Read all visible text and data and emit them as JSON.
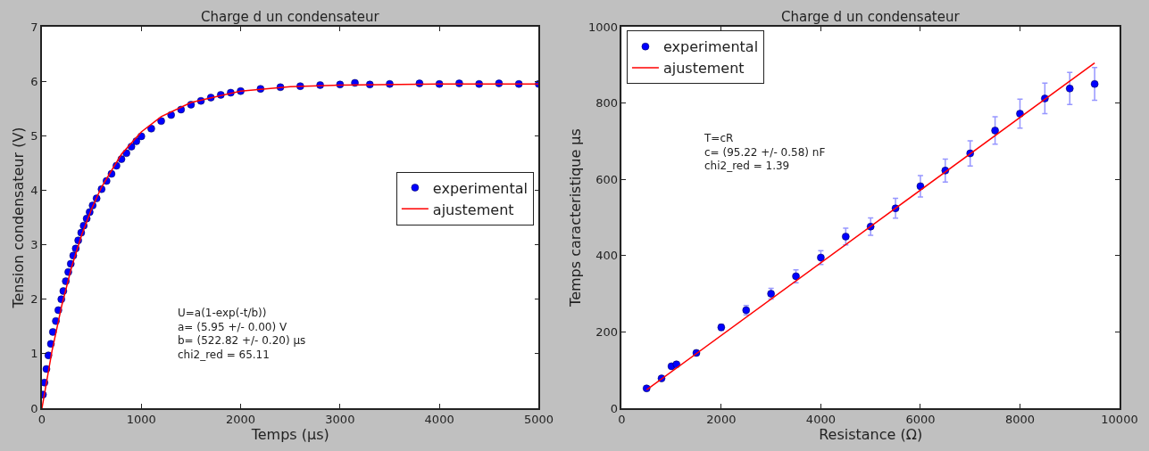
{
  "chart_data": [
    {
      "type": "scatter",
      "title": "Charge d un condensateur",
      "xlabel": "Temps (µs)",
      "ylabel": "Tension condensateur (V)",
      "xlim": [
        0,
        5000
      ],
      "xticks": [
        0,
        1000,
        2000,
        3000,
        4000,
        5000
      ],
      "ylim": [
        0,
        7
      ],
      "yticks": [
        0,
        1,
        2,
        3,
        4,
        5,
        6,
        7
      ],
      "legend": "right",
      "annotations": [
        "U=a(1-exp(-t/b))\na= (5.95 +/- 0.00) V\nb= (522.82 +/- 0.20) µs\nchi2_red = 65.11"
      ],
      "series": [
        {
          "name": "experimental",
          "marker": "circle",
          "color": "#0000ff",
          "x": [
            10,
            25,
            45,
            65,
            90,
            110,
            140,
            165,
            195,
            215,
            240,
            265,
            290,
            315,
            340,
            365,
            395,
            420,
            450,
            480,
            510,
            550,
            600,
            650,
            700,
            750,
            800,
            850,
            900,
            950,
            1000,
            1100,
            1200,
            1300,
            1400,
            1500,
            1600,
            1700,
            1800,
            1900,
            2000,
            2200,
            2400,
            2600,
            2800,
            3000,
            3150,
            3300,
            3500,
            3800,
            4000,
            4200,
            4400,
            4600,
            4800,
            5000
          ],
          "values": [
            0.25,
            0.47,
            0.72,
            0.97,
            1.18,
            1.4,
            1.6,
            1.8,
            2.0,
            2.15,
            2.33,
            2.5,
            2.65,
            2.8,
            2.93,
            3.08,
            3.22,
            3.35,
            3.48,
            3.6,
            3.72,
            3.85,
            4.02,
            4.17,
            4.3,
            4.45,
            4.57,
            4.68,
            4.8,
            4.9,
            4.99,
            5.13,
            5.27,
            5.38,
            5.48,
            5.57,
            5.64,
            5.7,
            5.75,
            5.79,
            5.82,
            5.86,
            5.89,
            5.91,
            5.93,
            5.94,
            5.97,
            5.94,
            5.95,
            5.96,
            5.95,
            5.96,
            5.95,
            5.96,
            5.95,
            5.95
          ]
        },
        {
          "name": "ajustement",
          "type": "line",
          "color": "#ff0000",
          "x": [
            0,
            100,
            200,
            300,
            400,
            500,
            600,
            800,
            1000,
            1200,
            1500,
            2000,
            2500,
            3000,
            4000,
            5000
          ],
          "values": [
            0,
            1.04,
            1.89,
            2.6,
            3.18,
            3.66,
            4.06,
            4.66,
            5.07,
            5.35,
            5.61,
            5.82,
            5.9,
            5.93,
            5.95,
            5.95
          ]
        }
      ]
    },
    {
      "type": "scatter",
      "title": "Charge d un condensateur",
      "xlabel": "Resistance (Ω)",
      "ylabel": "Temps caracteristique µs",
      "xlim": [
        0,
        10000
      ],
      "xticks": [
        0,
        2000,
        4000,
        6000,
        8000,
        10000
      ],
      "ylim": [
        0,
        1000
      ],
      "yticks": [
        0,
        200,
        400,
        600,
        800,
        1000
      ],
      "legend": "top left",
      "annotations": [
        "T=cR\nc= (95.22 +/- 0.58) nF\nchi2_red = 1.39"
      ],
      "series": [
        {
          "name": "experimental",
          "marker": "circle",
          "color": "#0000ff",
          "x": [
            500,
            800,
            1000,
            1100,
            1500,
            2000,
            2500,
            3000,
            3500,
            4000,
            4500,
            5000,
            5500,
            6000,
            6500,
            7000,
            7500,
            8000,
            8500,
            9000,
            9500
          ],
          "values": [
            52,
            78,
            110,
            115,
            145,
            212,
            257,
            300,
            346,
            395,
            450,
            476,
            524,
            582,
            623,
            668,
            728,
            772,
            812,
            838,
            850
          ],
          "errors": [
            null,
            null,
            null,
            null,
            null,
            8,
            12,
            14,
            17,
            18,
            22,
            23,
            26,
            28,
            30,
            33,
            36,
            38,
            40,
            42,
            43
          ]
        },
        {
          "name": "ajustement",
          "type": "line",
          "color": "#ff0000",
          "x": [
            500,
            9500
          ],
          "values": [
            48,
            905
          ]
        }
      ]
    }
  ]
}
